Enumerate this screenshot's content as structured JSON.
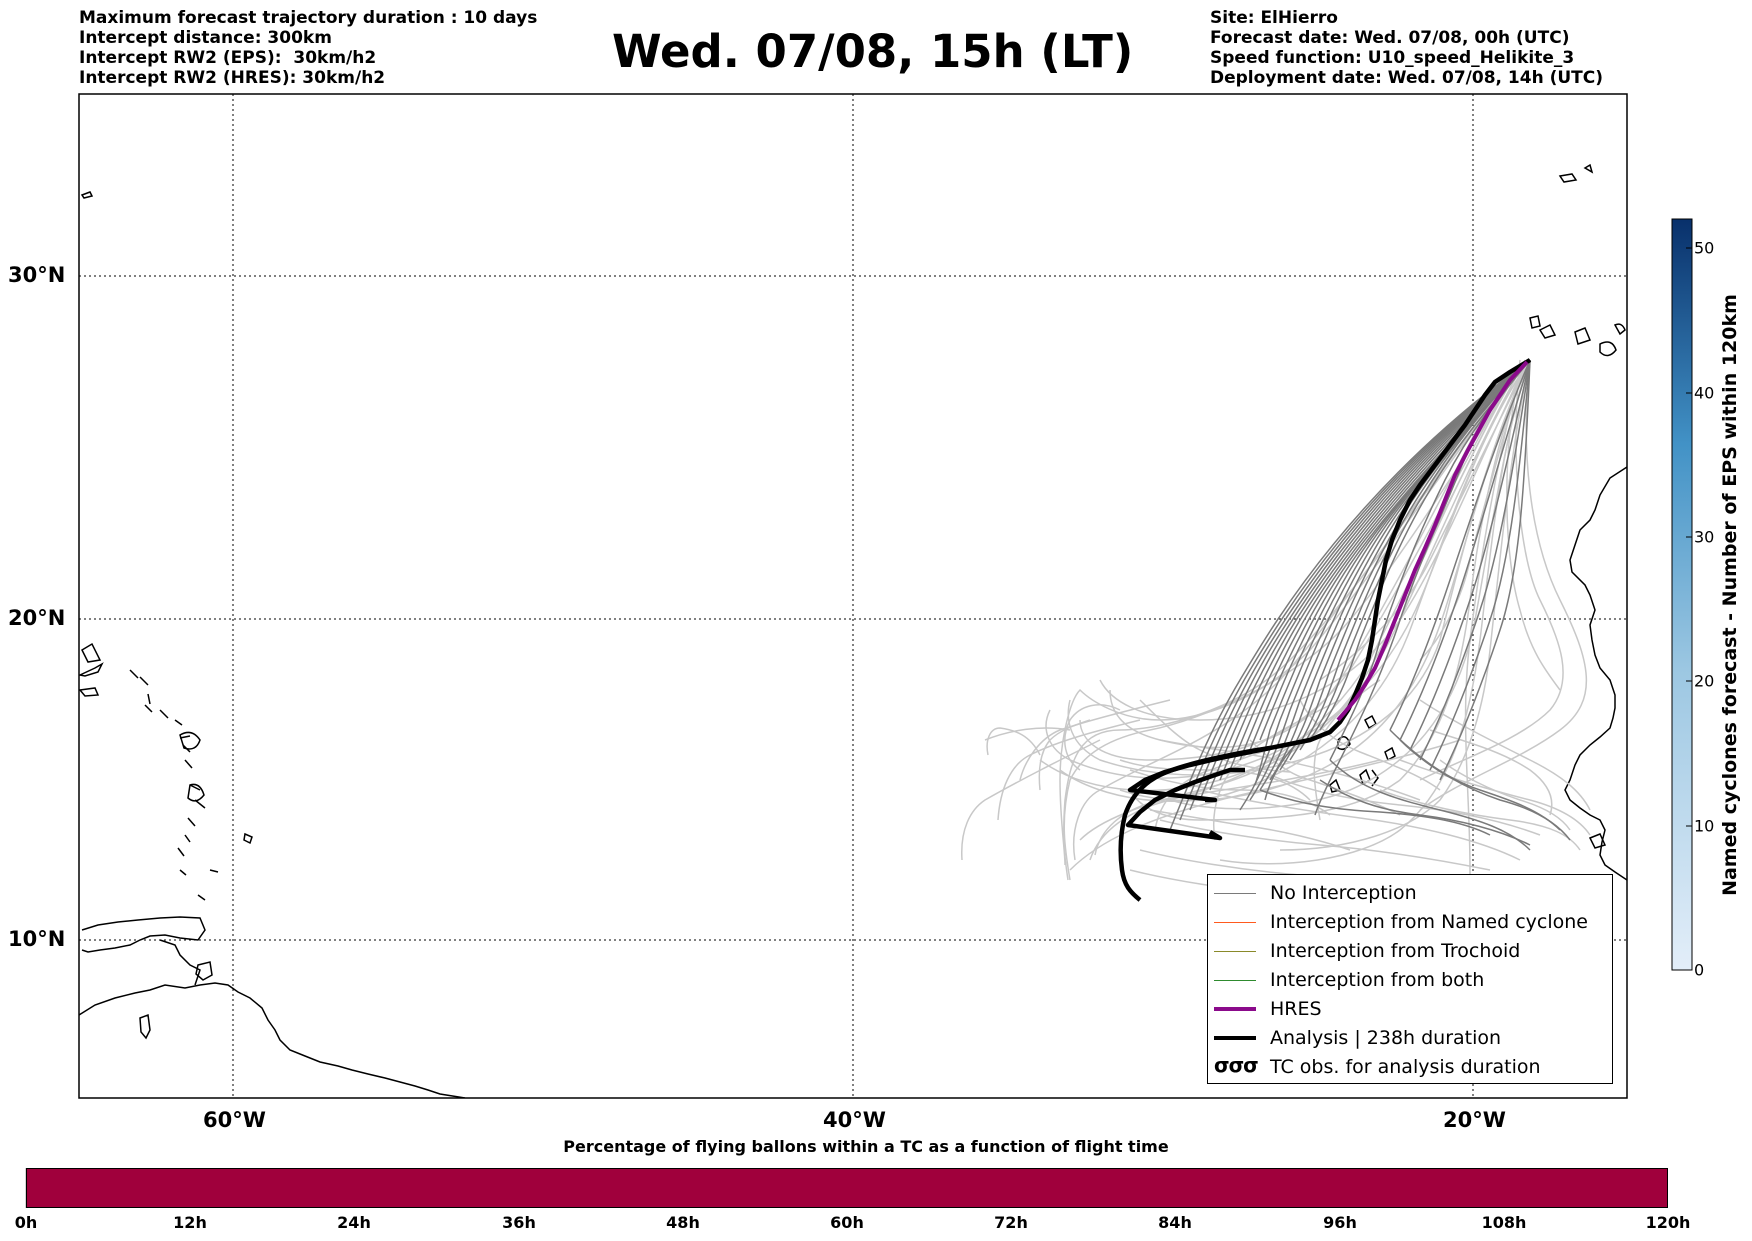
{
  "header_left": [
    "Maximum forecast trajectory duration : 10 days",
    "Intercept distance: 300km",
    "Intercept RW2 (EPS):  30km/h2",
    "Intercept RW2 (HRES): 30km/h2"
  ],
  "header_right": [
    "Site: ElHierro",
    "Forecast date: Wed. 07/08, 00h (UTC)",
    "Speed function: U10_speed_Helikite_3",
    "Deployment date: Wed. 07/08, 14h (UTC)"
  ],
  "title": "Wed. 07/08, 15h (LT)",
  "map": {
    "lon_range": [
      -65,
      15
    ],
    "lat_range": [
      5,
      34
    ],
    "lat_labels": [
      "30°N",
      "20°N",
      "10°N"
    ],
    "lon_labels": [
      "60°W",
      "40°W",
      "20°W"
    ],
    "grid": "dotted",
    "colors": {
      "no_interception": "#7a7a7a",
      "eps_light": "#c8c8c8",
      "named_cyclone": "#ff5a1e",
      "trochoid": "#8a8a2a",
      "both": "#2e8b2e",
      "hres": "#8b0a8b",
      "analysis": "#000000"
    }
  },
  "legend": {
    "items": [
      {
        "label": "No Interception",
        "color": "#7a7a7a",
        "style": "thin"
      },
      {
        "label": "Interception from Named cyclone",
        "color": "#ff5a1e",
        "style": "thin"
      },
      {
        "label": "Interception from Trochoid",
        "color": "#8a8a2a",
        "style": "thin"
      },
      {
        "label": "Interception from both",
        "color": "#2e8b2e",
        "style": "thin"
      },
      {
        "label": "HRES",
        "color": "#8b0a8b",
        "style": "thick"
      },
      {
        "label": "Analysis | 238h duration",
        "color": "#000000",
        "style": "thick"
      },
      {
        "label": "TC obs. for analysis duration",
        "color": "#000000",
        "style": "symbol"
      }
    ],
    "symbol_glyph": "σσσ"
  },
  "colorbar_right": {
    "title": "Named cyclones forecast - Number of EPS within 120km",
    "ticks": [
      "0",
      "10",
      "20",
      "30",
      "40",
      "50"
    ],
    "range": [
      0,
      52
    ],
    "color_low": "#e3eef9",
    "color_high": "#08306b"
  },
  "colorbar_bottom": {
    "title": "Percentage of flying ballons within a TC as a function of flight time",
    "ticks": [
      "0h",
      "12h",
      "24h",
      "36h",
      "48h",
      "60h",
      "72h",
      "84h",
      "96h",
      "108h",
      "120h"
    ],
    "fill_color": "#a0003c"
  }
}
